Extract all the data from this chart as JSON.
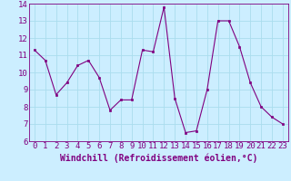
{
  "x": [
    0,
    1,
    2,
    3,
    4,
    5,
    6,
    7,
    8,
    9,
    10,
    11,
    12,
    13,
    14,
    15,
    16,
    17,
    18,
    19,
    20,
    21,
    22,
    23
  ],
  "y": [
    11.3,
    10.7,
    8.7,
    9.4,
    10.4,
    10.7,
    9.7,
    7.8,
    8.4,
    8.4,
    11.3,
    11.2,
    13.8,
    8.5,
    6.5,
    6.6,
    9.0,
    13.0,
    13.0,
    11.5,
    9.4,
    8.0,
    7.4,
    7.0
  ],
  "line_color": "#800080",
  "marker": "s",
  "marker_size": 2,
  "bg_color": "#cceeff",
  "grid_color": "#aaddee",
  "xlabel": "Windchill (Refroidissement éolien,°C)",
  "ylim": [
    6,
    14
  ],
  "xlim_min": -0.5,
  "xlim_max": 23.5,
  "yticks": [
    6,
    7,
    8,
    9,
    10,
    11,
    12,
    13,
    14
  ],
  "xticks": [
    0,
    1,
    2,
    3,
    4,
    5,
    6,
    7,
    8,
    9,
    10,
    11,
    12,
    13,
    14,
    15,
    16,
    17,
    18,
    19,
    20,
    21,
    22,
    23
  ],
  "tick_fontsize": 6.5,
  "xlabel_fontsize": 7
}
